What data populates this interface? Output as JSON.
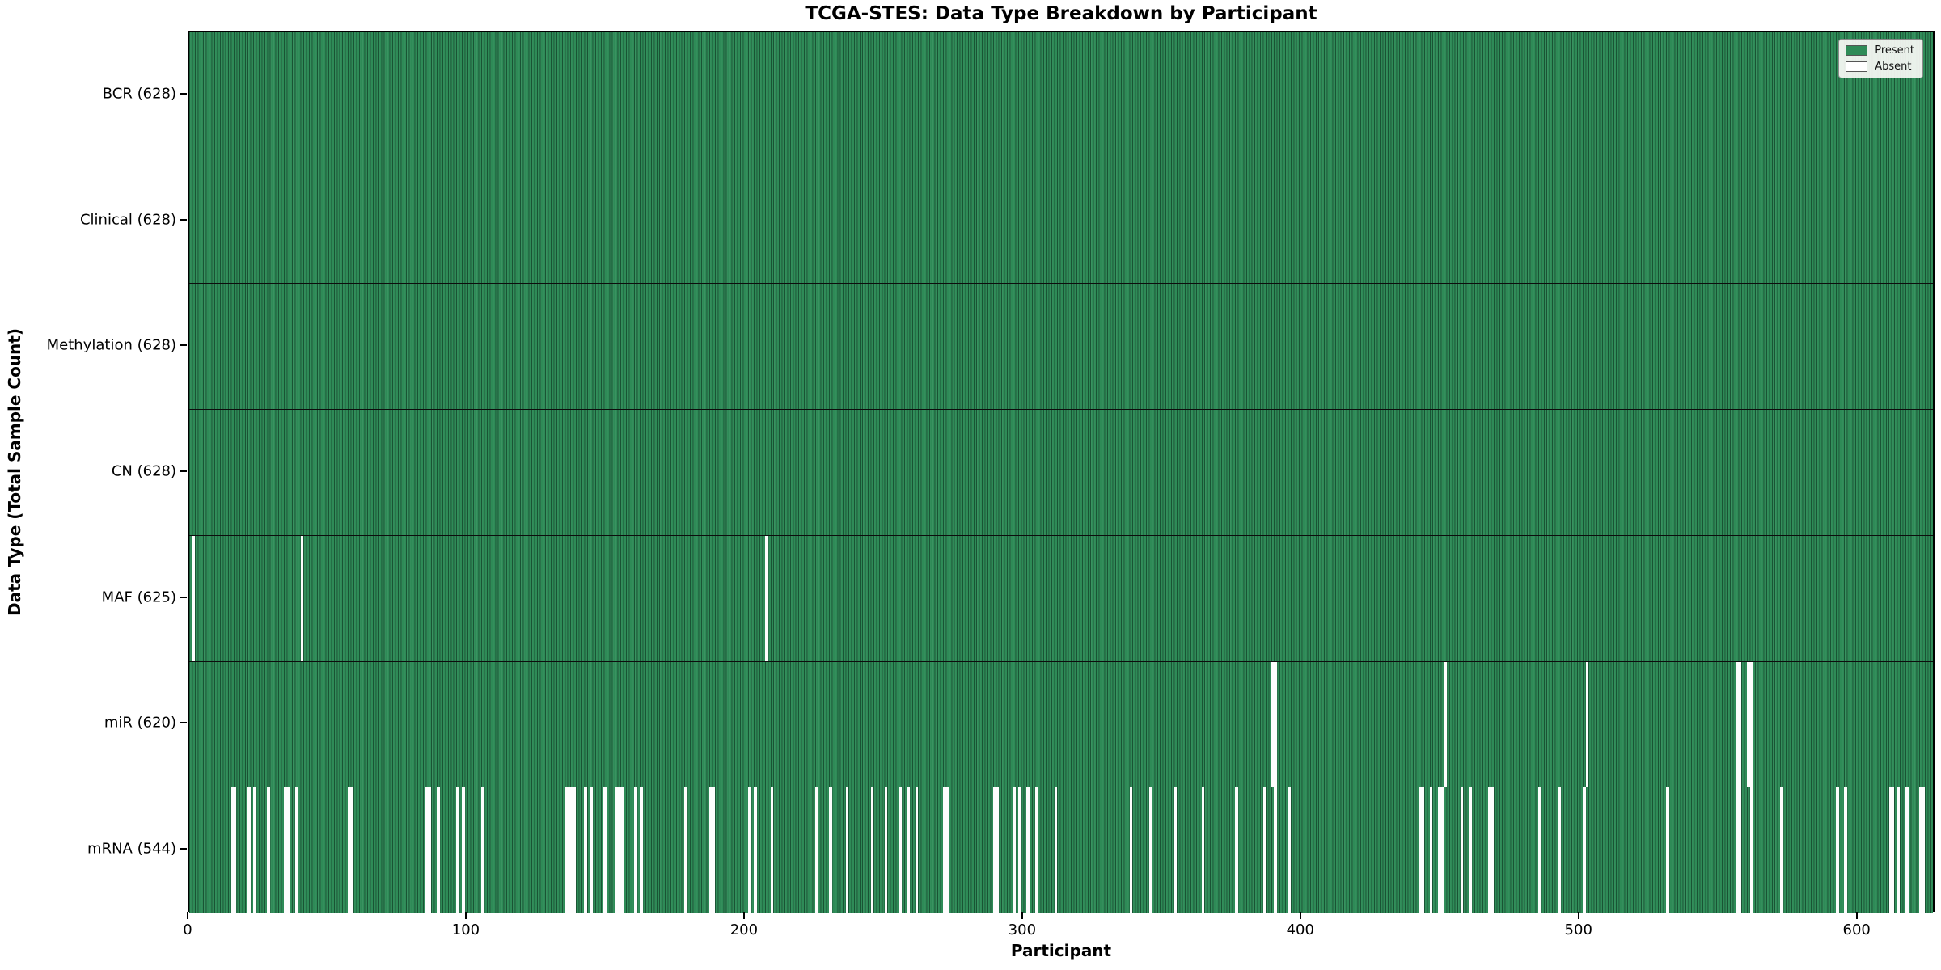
{
  "chart_data": {
    "type": "heatmap",
    "title": "TCGA-STES: Data Type Breakdown by Participant",
    "xlabel": "Participant",
    "ylabel": "Data Type (Total Sample Count)",
    "n_participants": 628,
    "x_ticks": [
      0,
      100,
      200,
      300,
      400,
      500,
      600
    ],
    "present_color": "#2e8b57",
    "absent_color": "#fdfdfd",
    "legend": [
      {
        "label": "Present",
        "color": "#2e8b57"
      },
      {
        "label": "Absent",
        "color": "#ffffff"
      }
    ],
    "legend_position": "upper right",
    "grid": false,
    "rows": [
      {
        "label": "BCR (628)",
        "data_type": "BCR",
        "present_count": 628,
        "absent_participants": []
      },
      {
        "label": "Clinical (628)",
        "data_type": "Clinical",
        "present_count": 628,
        "absent_participants": []
      },
      {
        "label": "Methylation (628)",
        "data_type": "Methylation",
        "present_count": 628,
        "absent_participants": []
      },
      {
        "label": "CN (628)",
        "data_type": "CN",
        "present_count": 628,
        "absent_participants": []
      },
      {
        "label": "MAF (625)",
        "data_type": "MAF",
        "present_count": 625,
        "absent_participants": [
          1,
          40,
          207
        ]
      },
      {
        "label": "miR (620)",
        "data_type": "miR",
        "present_count": 620,
        "absent_participants": [
          389,
          390,
          451,
          502,
          556,
          557,
          560,
          561
        ]
      },
      {
        "label": "mRNA (544)",
        "data_type": "mRNA",
        "present_count": 544,
        "absent_participants": [
          15,
          16,
          21,
          23,
          28,
          34,
          35,
          38,
          57,
          58,
          85,
          86,
          89,
          96,
          98,
          105,
          135,
          136,
          137,
          138,
          142,
          144,
          149,
          153,
          154,
          155,
          160,
          162,
          178,
          187,
          188,
          201,
          203,
          209,
          225,
          230,
          236,
          245,
          250,
          255,
          258,
          261,
          271,
          272,
          289,
          290,
          296,
          298,
          301,
          304,
          311,
          338,
          345,
          354,
          364,
          376,
          386,
          390,
          395,
          442,
          443,
          446,
          449,
          450,
          457,
          460,
          467,
          468,
          485,
          492,
          501,
          531,
          556,
          557,
          561,
          572,
          592,
          595,
          611,
          612,
          614,
          617,
          622,
          623
        ]
      }
    ]
  }
}
